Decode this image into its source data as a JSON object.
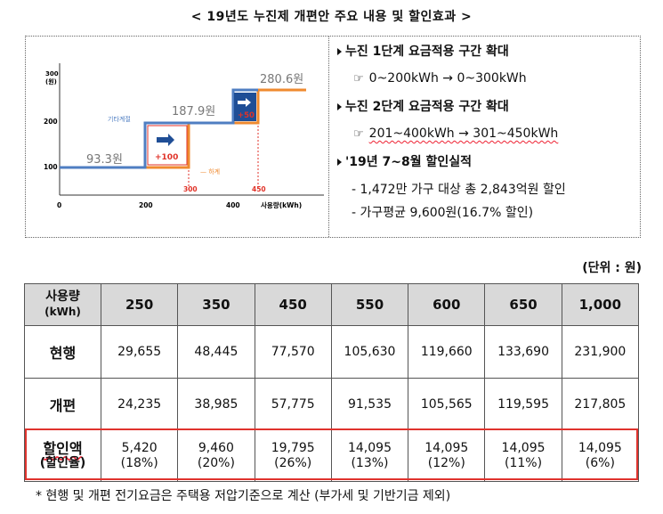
{
  "title": "< 19년도 누진제 개편안 주요 내용 및 할인효과 >",
  "chart_data": {
    "type": "line",
    "ylabel": "300\n(원)",
    "xlabel": "사용량(kWh)",
    "x_ticks": [
      "0",
      "200",
      "400"
    ],
    "y_ticks": [
      "300\n(원)",
      "200",
      "100"
    ],
    "step_prices": [
      "93.3원",
      "187.9원",
      "280.6원"
    ],
    "legend_other": "기타계절",
    "legend_summer": "하계",
    "increments": [
      "+100",
      "+50"
    ],
    "break_labels": [
      "300",
      "450"
    ],
    "colors": {
      "other": "#4f7ec2",
      "summer": "#ef8a2f",
      "increment_red": "#e03228"
    }
  },
  "bullets": {
    "b1_head": "누진 1단계 요금적용 구간 확대",
    "b1_sub": "0~200kWh → 0~300kWh",
    "b2_head": "누진 2단계 요금적용 구간 확대",
    "b2_sub": "201~400kWh → 301~450kWh",
    "b3_head": "'19년 7~8월 할인실적",
    "b3_sub1": "- 1,472만 가구 대상 총 2,843억원 할인",
    "b3_sub2": "- 가구평균 9,600원(16.7% 할인)"
  },
  "unit_label": "(단위 : 원)",
  "table": {
    "header": [
      "사용량\n(kWh)",
      "250",
      "350",
      "450",
      "550",
      "600",
      "650",
      "1,000"
    ],
    "rows": [
      {
        "label": "현행",
        "values": [
          "29,655",
          "48,445",
          "77,570",
          "105,630",
          "119,660",
          "133,690",
          "231,900"
        ]
      },
      {
        "label": "개편",
        "values": [
          "24,235",
          "38,985",
          "57,775",
          "91,535",
          "105,565",
          "119,595",
          "217,805"
        ]
      }
    ],
    "discount_label_1": "할인액",
    "discount_label_2": "(할인율)",
    "discount_amount": [
      "5,420",
      "9,460",
      "19,795",
      "14,095",
      "14,095",
      "14,095",
      "14,095"
    ],
    "discount_rate": [
      "(18%)",
      "(20%)",
      "(26%)",
      "(13%)",
      "(12%)",
      "(11%)",
      "(6%)"
    ]
  },
  "footnote": "* 현행 및 개편 전기요금은 주택용 저압기준으로 계산 (부가세 및 기반기금 제외)"
}
